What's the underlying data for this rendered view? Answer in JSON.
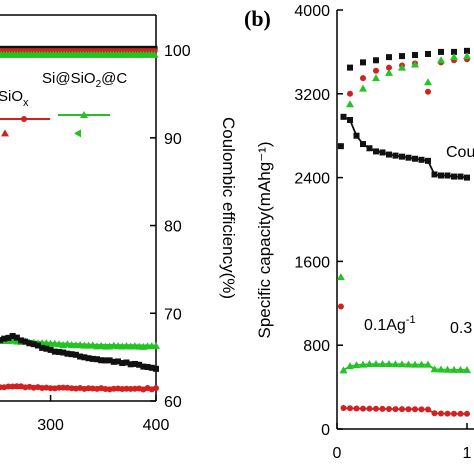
{
  "colors": {
    "black_series": "#111111",
    "red_series": "#d32020",
    "green_series": "#22c322",
    "axis": "#000000"
  },
  "chart_data": [
    {
      "panel": "a",
      "type": "scatter",
      "xlabel": "",
      "ylabel_right": "Coulombic efficiency(%)",
      "x_ticks": [
        "300",
        "400"
      ],
      "y_right_ticks": [
        "60",
        "70",
        "80",
        "90",
        "100"
      ],
      "x_visible_range": [
        240,
        400
      ],
      "y_right_range": [
        60,
        104
      ],
      "legend_labels": [
        "SiOx",
        "Si@SiO2@C"
      ],
      "legend_label_parts": {
        "siox": {
          "base": "SiO",
          "sub": "x"
        },
        "sisioc": {
          "a": "Si@SiO",
          "sub": "2",
          "b": "@C"
        }
      },
      "series": [
        {
          "name": "SiOx",
          "color": "red",
          "kind": "capacity_line",
          "x": [
            240,
            280,
            300,
            340,
            400
          ],
          "y_right_scale": [
            61.6,
            61.6,
            61.5,
            61.4,
            61.4
          ]
        },
        {
          "name": "Si@SiO2@C",
          "color": "green",
          "kind": "capacity_line",
          "x": [
            240,
            270,
            300,
            340,
            400
          ],
          "y_right_scale": [
            66.9,
            66.8,
            66.5,
            66.3,
            66.2
          ]
        },
        {
          "name": "",
          "color": "black",
          "kind": "capacity_line",
          "x": [
            240,
            265,
            275,
            300,
            340,
            380,
            400
          ],
          "y_right_scale": [
            66.6,
            67.4,
            66.8,
            65.8,
            64.8,
            64.2,
            63.7
          ]
        },
        {
          "name": "",
          "color": "black",
          "kind": "efficiency",
          "x": [
            240,
            400
          ],
          "y": [
            100,
            100
          ]
        },
        {
          "name": "",
          "color": "red",
          "kind": "efficiency",
          "x": [
            240,
            400
          ],
          "y": [
            99.9,
            99.9
          ]
        },
        {
          "name": "",
          "color": "green",
          "kind": "efficiency",
          "x": [
            240,
            400
          ],
          "y": [
            99.6,
            99.6
          ]
        }
      ],
      "legend_markers": [
        {
          "color": "red",
          "value": 90.5
        },
        {
          "color": "green",
          "value": 90.5
        }
      ]
    },
    {
      "panel": "b",
      "panel_label": "(b)",
      "type": "scatter",
      "ylabel": "Specific capacity(mAhg⁻¹)",
      "x_ticks": [
        "0",
        "1"
      ],
      "y_ticks": [
        "0",
        "800",
        "1600",
        "2400",
        "3200",
        "4000"
      ],
      "ylim": [
        0,
        4000
      ],
      "annotations": [
        {
          "text_base": "0.1Ag",
          "text_sup": "-1"
        },
        {
          "text": "0.3"
        },
        {
          "text": "Cou"
        }
      ],
      "series": [
        {
          "name": "",
          "color": "black",
          "kind": "capacity",
          "x": [
            0.05,
            0.1,
            0.15,
            0.2,
            0.25,
            0.3,
            0.35,
            0.4,
            0.45,
            0.5,
            0.55,
            0.6,
            0.65,
            0.7,
            0.75,
            0.8,
            0.85,
            0.9,
            0.95,
            1.0
          ],
          "y": [
            2980,
            2950,
            2800,
            2720,
            2680,
            2650,
            2640,
            2620,
            2610,
            2600,
            2590,
            2580,
            2570,
            2560,
            2430,
            2420,
            2420,
            2410,
            2410,
            2400
          ]
        },
        {
          "name": "",
          "color": "green",
          "kind": "capacity",
          "x": [
            0.05,
            0.1,
            0.15,
            0.2,
            0.25,
            0.3,
            0.35,
            0.4,
            0.45,
            0.5,
            0.55,
            0.6,
            0.65,
            0.7,
            0.75,
            0.8,
            0.85,
            0.9,
            0.95,
            1.0
          ],
          "y": [
            560,
            600,
            610,
            615,
            620,
            620,
            620,
            620,
            618,
            618,
            616,
            615,
            615,
            615,
            570,
            568,
            566,
            565,
            564,
            563
          ]
        },
        {
          "name": "",
          "color": "red",
          "kind": "capacity",
          "x": [
            0.05,
            0.1,
            0.15,
            0.2,
            0.25,
            0.3,
            0.35,
            0.4,
            0.45,
            0.5,
            0.55,
            0.6,
            0.65,
            0.7,
            0.75,
            0.8,
            0.85,
            0.9,
            0.95,
            1.0
          ],
          "y": [
            200,
            198,
            196,
            195,
            194,
            193,
            192,
            191,
            190,
            190,
            189,
            188,
            187,
            186,
            150,
            148,
            147,
            146,
            145,
            145
          ]
        },
        {
          "name": "",
          "color": "black",
          "kind": "efficiency",
          "x": [
            0.03,
            0.1,
            0.2,
            0.3,
            0.4,
            0.5,
            0.6,
            0.7,
            0.8,
            0.9,
            1.0
          ],
          "y": [
            2700,
            3450,
            3500,
            3520,
            3550,
            3560,
            3570,
            3580,
            3600,
            3600,
            3610
          ]
        },
        {
          "name": "",
          "color": "red",
          "kind": "efficiency",
          "x": [
            0.1,
            0.2,
            0.3,
            0.4,
            0.5,
            0.6,
            0.7,
            0.8,
            0.9,
            1.0
          ],
          "y": [
            3200,
            3350,
            3420,
            3450,
            3470,
            3490,
            3220,
            3500,
            3520,
            3530
          ]
        },
        {
          "name": "",
          "color": "green",
          "kind": "efficiency",
          "x": [
            0.1,
            0.2,
            0.3,
            0.4,
            0.5,
            0.6,
            0.7,
            0.8,
            0.9,
            1.0
          ],
          "y": [
            3100,
            3250,
            3350,
            3400,
            3450,
            3480,
            3310,
            3520,
            3550,
            3560
          ]
        },
        {
          "name": "",
          "color": "green",
          "kind": "first_cycle",
          "x": [
            0.03
          ],
          "y": [
            1450
          ]
        },
        {
          "name": "",
          "color": "red",
          "kind": "first_cycle",
          "x": [
            0.03
          ],
          "y": [
            1170
          ]
        }
      ]
    }
  ]
}
